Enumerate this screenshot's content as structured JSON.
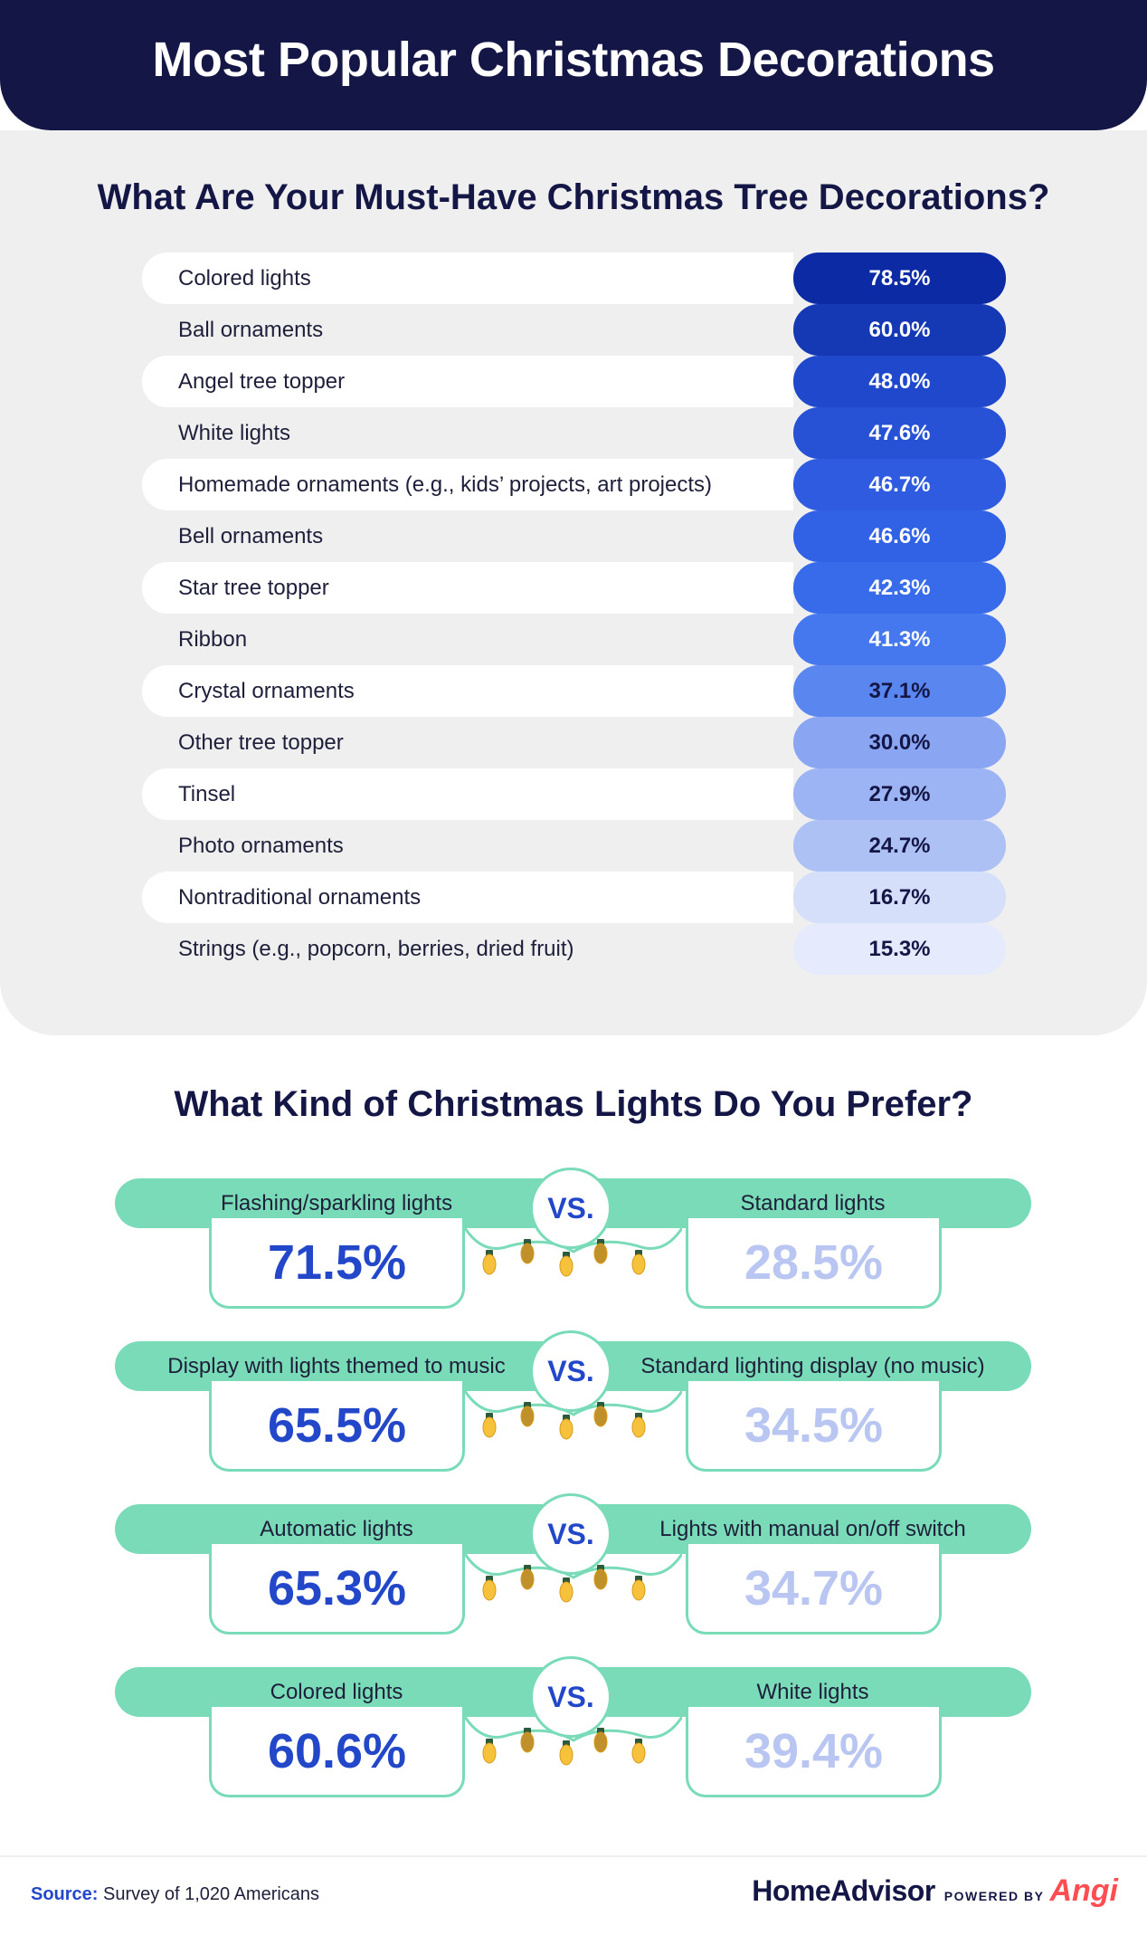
{
  "header": {
    "title": "Most Popular Christmas Decorations"
  },
  "section1": {
    "title": "What Are Your Must-Have Christmas Tree Decorations?"
  },
  "section2": {
    "title": "What Kind of Christmas Lights Do You Prefer?",
    "vs_label": "VS."
  },
  "chart_data": [
    {
      "type": "bar",
      "title": "What Are Your Must-Have Christmas Tree Decorations?",
      "categories": [
        "Colored lights",
        "Ball ornaments",
        "Angel tree topper",
        "White lights",
        "Homemade ornaments (e.g., kids’ projects, art projects)",
        "Bell ornaments",
        "Star tree topper",
        "Ribbon",
        "Crystal ornaments",
        "Other tree topper",
        "Tinsel",
        "Photo ornaments",
        "Nontraditional ornaments",
        "Strings (e.g., popcorn, berries, dried fruit)"
      ],
      "values": [
        78.5,
        60.0,
        48.0,
        47.6,
        46.7,
        46.6,
        42.3,
        41.3,
        37.1,
        30.0,
        27.9,
        24.7,
        16.7,
        15.3
      ],
      "value_labels": [
        "78.5%",
        "60.0%",
        "48.0%",
        "47.6%",
        "46.7%",
        "46.6%",
        "42.3%",
        "41.3%",
        "37.1%",
        "30.0%",
        "27.9%",
        "24.7%",
        "16.7%",
        "15.3%"
      ],
      "colors": [
        "#0b2aa4",
        "#1538b4",
        "#1f48cc",
        "#2752d6",
        "#2e5be0",
        "#3162e6",
        "#386bea",
        "#4578ee",
        "#5a86ef",
        "#8aa6f2",
        "#9db4f4",
        "#adc1f5",
        "#d5dffa",
        "#e5ebfc"
      ],
      "label_colors": [
        "#ffffff",
        "#ffffff",
        "#ffffff",
        "#ffffff",
        "#ffffff",
        "#ffffff",
        "#ffffff",
        "#ffffff",
        "#141646",
        "#141646",
        "#141646",
        "#141646",
        "#141646",
        "#141646"
      ]
    },
    {
      "type": "table",
      "title": "What Kind of Christmas Lights Do You Prefer?",
      "pairs": [
        {
          "left_label": "Flashing/sparkling lights",
          "left_value": "71.5%",
          "right_label": "Standard lights",
          "right_value": "28.5%"
        },
        {
          "left_label": "Display with lights themed to music",
          "left_value": "65.5%",
          "right_label": "Standard lighting display (no music)",
          "right_value": "34.5%"
        },
        {
          "left_label": "Automatic lights",
          "left_value": "65.3%",
          "right_label": "Lights with manual on/off switch",
          "right_value": "34.7%"
        },
        {
          "left_label": "Colored lights",
          "left_value": "60.6%",
          "right_label": "White lights",
          "right_value": "39.4%"
        }
      ]
    }
  ],
  "footer": {
    "source_key": "Source:",
    "source_text": "Survey of 1,020 Americans",
    "brand": "HomeAdvisor",
    "powered_by": "POWERED BY",
    "angi": "Angi"
  }
}
